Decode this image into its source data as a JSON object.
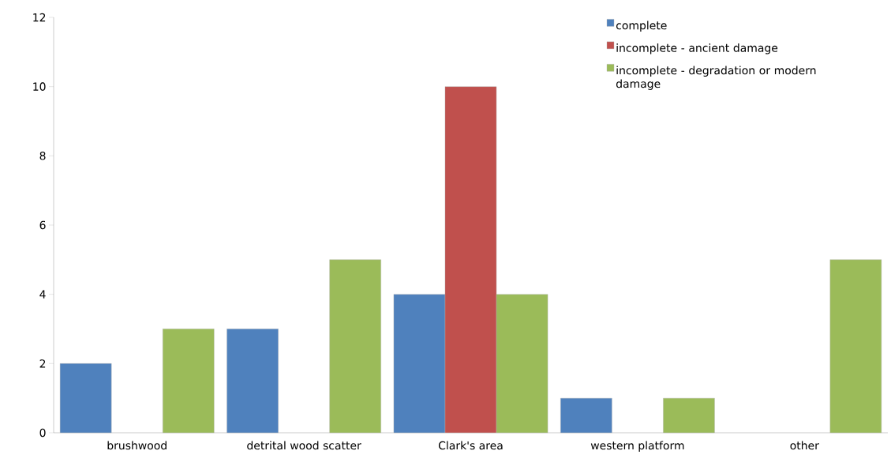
{
  "chart_data": {
    "type": "bar",
    "categories": [
      "brushwood",
      "detrital wood scatter",
      "Clark's area",
      "western platform",
      "other"
    ],
    "series": [
      {
        "name": "complete",
        "color": "#4f81bd",
        "values": [
          2,
          3,
          4,
          1,
          null
        ]
      },
      {
        "name": "incomplete - ancient damage",
        "color": "#c0504d",
        "values": [
          null,
          null,
          10,
          null,
          null
        ]
      },
      {
        "name": "incomplete - degradation or modern damage",
        "color": "#9bbb59",
        "values": [
          3,
          5,
          4,
          1,
          5
        ]
      }
    ],
    "ylim": [
      0,
      12
    ],
    "yticks": [
      0,
      2,
      4,
      6,
      8,
      10,
      12
    ],
    "grid": false,
    "legend": "top right"
  }
}
